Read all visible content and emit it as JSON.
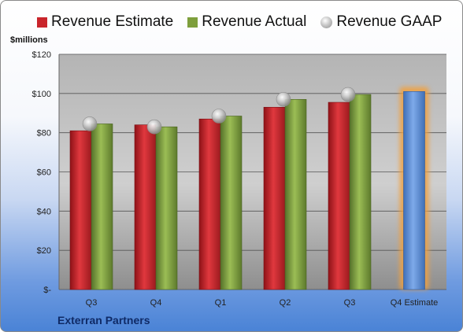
{
  "legend": {
    "estimate": "Revenue Estimate",
    "actual": "Revenue Actual",
    "gaap": "Revenue GAAP"
  },
  "unit_label": "$millions",
  "company": "Exterran Partners",
  "colors": {
    "estimate": "#c9252b",
    "actual": "#7e9f3c",
    "gaap": "#b8b8b8",
    "forecast": "#5b8fd6",
    "forecast_glow": "#f0a040"
  },
  "chart_data": {
    "type": "bar",
    "categories": [
      "Q3",
      "Q4",
      "Q1",
      "Q2",
      "Q3",
      "Q4 Estimate"
    ],
    "series": [
      {
        "name": "Revenue Estimate",
        "values": [
          81,
          84,
          87,
          93,
          95.5,
          101
        ]
      },
      {
        "name": "Revenue Actual",
        "values": [
          84.5,
          83,
          88.5,
          97,
          99.5,
          null
        ]
      },
      {
        "name": "Revenue GAAP",
        "values": [
          84.5,
          83,
          88.5,
          97,
          99.5,
          null
        ]
      }
    ],
    "ylim": [
      0,
      120
    ],
    "yticks": [
      0,
      20,
      40,
      60,
      80,
      100,
      120
    ],
    "ytick_labels": [
      "$-",
      "$20",
      "$40",
      "$60",
      "$80",
      "$100",
      "$120"
    ],
    "ylabel": "$millions",
    "grid": true,
    "legend_position": "top"
  }
}
